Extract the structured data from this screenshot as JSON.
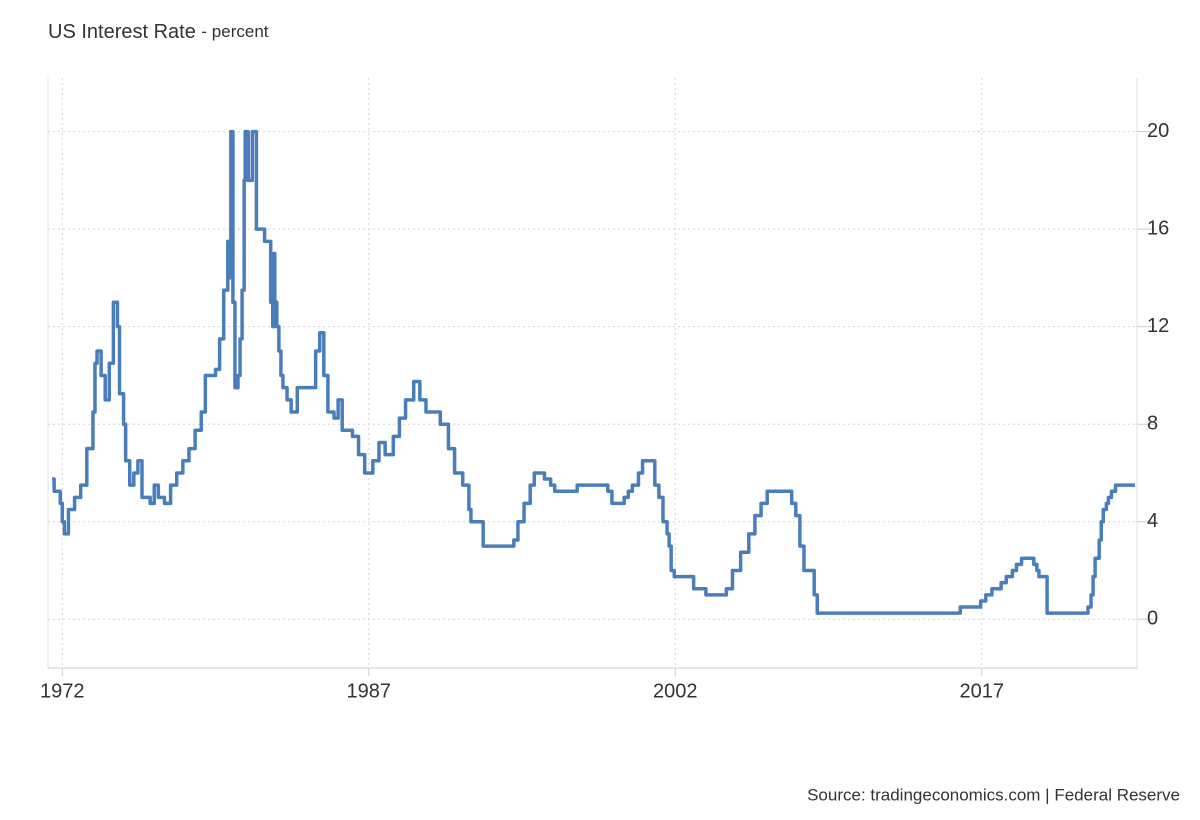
{
  "chart_data": {
    "type": "step-line",
    "title": "US Interest Rate",
    "subtitle": "- percent",
    "source": "Source: tradingeconomics.com | Federal Reserve",
    "x": [
      1971.5,
      1971.6,
      1971.9,
      1972.0,
      1972.1,
      1972.3,
      1972.6,
      1972.9,
      1973.2,
      1973.5,
      1973.6,
      1973.7,
      1973.9,
      1974.1,
      1974.3,
      1974.5,
      1974.7,
      1974.8,
      1975.0,
      1975.1,
      1975.3,
      1975.5,
      1975.7,
      1975.9,
      1976.3,
      1976.5,
      1976.7,
      1977.0,
      1977.3,
      1977.6,
      1977.9,
      1978.2,
      1978.5,
      1978.8,
      1979.0,
      1979.5,
      1979.7,
      1979.9,
      1980.1,
      1980.15,
      1980.2,
      1980.25,
      1980.35,
      1980.45,
      1980.6,
      1980.7,
      1980.8,
      1980.9,
      1980.95,
      1981.1,
      1981.3,
      1981.5,
      1981.9,
      1982.2,
      1982.3,
      1982.35,
      1982.4,
      1982.5,
      1982.6,
      1982.7,
      1982.8,
      1983.0,
      1983.2,
      1983.5,
      1984.0,
      1984.4,
      1984.6,
      1984.8,
      1985.0,
      1985.3,
      1985.5,
      1985.7,
      1986.2,
      1986.5,
      1986.8,
      1987.2,
      1987.5,
      1987.8,
      1988.2,
      1988.5,
      1988.8,
      1989.2,
      1989.5,
      1989.8,
      1990.5,
      1990.9,
      1991.2,
      1991.6,
      1991.9,
      1992.0,
      1992.6,
      1994.1,
      1994.3,
      1994.6,
      1994.9,
      1995.1,
      1995.6,
      1995.9,
      1996.1,
      1997.2,
      1998.7,
      1998.9,
      1999.5,
      1999.7,
      1999.9,
      2000.2,
      2000.4,
      2001.0,
      2001.2,
      2001.4,
      2001.6,
      2001.7,
      2001.8,
      2001.95,
      2002.9,
      2003.5,
      2004.5,
      2004.8,
      2005.2,
      2005.6,
      2005.9,
      2006.2,
      2006.5,
      2007.7,
      2007.9,
      2008.1,
      2008.3,
      2008.8,
      2008.95,
      2015.95,
      2016.95,
      2017.2,
      2017.5,
      2017.95,
      2018.2,
      2018.5,
      2018.7,
      2018.95,
      2019.55,
      2019.7,
      2019.8,
      2020.2,
      2022.2,
      2022.35,
      2022.45,
      2022.55,
      2022.75,
      2022.85,
      2022.95,
      2023.1,
      2023.2,
      2023.35,
      2023.55,
      2024.5
    ],
    "series": [
      {
        "name": "US Interest Rate",
        "color": "#4a7ebb",
        "values": [
          5.75,
          5.25,
          4.75,
          4.0,
          3.5,
          4.5,
          5.0,
          5.5,
          7.0,
          8.5,
          10.5,
          11.0,
          10.0,
          9.0,
          10.5,
          13.0,
          12.0,
          9.25,
          8.0,
          6.5,
          5.5,
          6.0,
          6.5,
          5.0,
          4.75,
          5.5,
          5.0,
          4.75,
          5.5,
          6.0,
          6.5,
          7.0,
          7.75,
          8.5,
          10.0,
          10.25,
          11.5,
          13.5,
          15.5,
          14.0,
          15.0,
          20.0,
          13.0,
          9.5,
          10.0,
          11.5,
          13.5,
          18.0,
          20.0,
          18.0,
          20.0,
          16.0,
          15.5,
          13.0,
          12.0,
          15.0,
          13.0,
          12.0,
          11.0,
          10.0,
          9.5,
          9.0,
          8.5,
          9.5,
          9.5,
          11.0,
          11.75,
          10.0,
          8.5,
          8.25,
          9.0,
          7.75,
          7.5,
          6.75,
          6.0,
          6.5,
          7.25,
          6.75,
          7.5,
          8.25,
          9.0,
          9.75,
          9.0,
          8.5,
          8.0,
          7.0,
          6.0,
          5.5,
          4.5,
          4.0,
          3.0,
          3.25,
          4.0,
          4.75,
          5.5,
          6.0,
          5.75,
          5.5,
          5.25,
          5.5,
          5.25,
          4.75,
          5.0,
          5.25,
          5.5,
          6.0,
          6.5,
          5.5,
          5.0,
          4.0,
          3.5,
          3.0,
          2.0,
          1.75,
          1.25,
          1.0,
          1.25,
          2.0,
          2.75,
          3.5,
          4.25,
          4.75,
          5.25,
          4.75,
          4.25,
          3.0,
          2.0,
          1.0,
          0.25,
          0.5,
          0.75,
          1.0,
          1.25,
          1.5,
          1.75,
          2.0,
          2.25,
          2.5,
          2.25,
          2.0,
          1.75,
          0.25,
          0.5,
          1.0,
          1.75,
          2.5,
          3.25,
          4.0,
          4.5,
          4.75,
          5.0,
          5.25,
          5.5,
          5.5
        ]
      }
    ],
    "xlim": [
      1971.3,
      2024.6
    ],
    "xticks": [
      1972,
      1987,
      2002,
      2017
    ],
    "ylim": [
      -2,
      22.2
    ],
    "yticks": [
      0,
      4,
      8,
      12,
      16,
      20
    ],
    "grid": true
  }
}
